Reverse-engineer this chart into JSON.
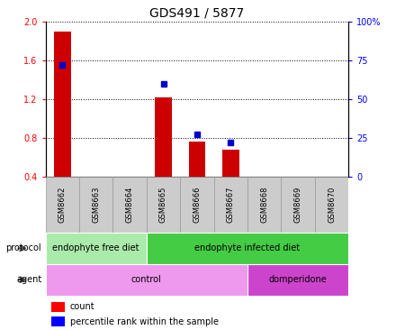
{
  "title": "GDS491 / 5877",
  "samples": [
    "GSM8662",
    "GSM8663",
    "GSM8664",
    "GSM8665",
    "GSM8666",
    "GSM8667",
    "GSM8668",
    "GSM8669",
    "GSM8670"
  ],
  "count_values": [
    1.9,
    0,
    0,
    1.22,
    0.76,
    0.68,
    0,
    0,
    0
  ],
  "percentile_values": [
    72,
    null,
    null,
    60,
    27,
    22,
    null,
    null,
    null
  ],
  "ylim_left": [
    0.4,
    2.0
  ],
  "ylim_right": [
    0,
    100
  ],
  "yticks_left": [
    0.4,
    0.8,
    1.2,
    1.6,
    2.0
  ],
  "yticks_right": [
    0,
    25,
    50,
    75,
    100
  ],
  "right_tick_labels": [
    "0",
    "25",
    "50",
    "75",
    "100%"
  ],
  "protocol_groups": [
    {
      "label": "endophyte free diet",
      "start": 0,
      "end": 3,
      "color": "#aaeaaa"
    },
    {
      "label": "endophyte infected diet",
      "start": 3,
      "end": 9,
      "color": "#44cc44"
    }
  ],
  "agent_groups": [
    {
      "label": "control",
      "start": 0,
      "end": 6,
      "color": "#ee99ee"
    },
    {
      "label": "domperidone",
      "start": 6,
      "end": 9,
      "color": "#cc44cc"
    }
  ],
  "bar_color": "#cc0000",
  "point_color": "#0000cc",
  "background_color": "#ffffff",
  "title_fontsize": 10,
  "tick_fontsize": 7,
  "legend_fontsize": 7,
  "bar_width": 0.5,
  "xtick_bg_color": "#cccccc",
  "xtick_border_color": "#999999",
  "row_label_fontsize": 7,
  "row_text_fontsize": 7
}
